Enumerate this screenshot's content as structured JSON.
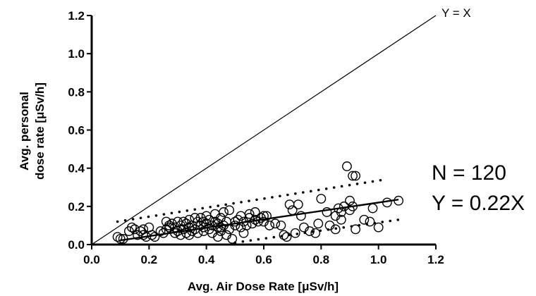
{
  "chart_data": {
    "type": "scatter",
    "title": "",
    "xlabel": "Avg. Air Dose Rate [μSv/h]",
    "ylabel": [
      "Avg. personal",
      "dose rate [μSv/h]"
    ],
    "xlim": [
      0.0,
      1.2
    ],
    "ylim": [
      0.0,
      1.2
    ],
    "x_ticks": [
      "0.0",
      "0.2",
      "0.4",
      "0.6",
      "0.8",
      "1.0",
      "1.2"
    ],
    "y_ticks": [
      "0.0",
      "0.2",
      "0.4",
      "0.6",
      "0.8",
      "1.0",
      "1.2"
    ],
    "grid": false,
    "reference_line": {
      "label": "Y = X",
      "slope": 1
    },
    "fit_line": {
      "slope": 0.22,
      "x_range": [
        0.1,
        1.07
      ]
    },
    "band_lines": [
      {
        "start": [
          0.09,
          0.12
        ],
        "end": [
          1.02,
          0.34
        ]
      },
      {
        "start": [
          0.5,
          0.01
        ],
        "end": [
          1.07,
          0.13
        ]
      }
    ],
    "annotations": [
      "N = 120",
      "Y = 0.22X"
    ],
    "points": [
      [
        0.09,
        0.04
      ],
      [
        0.1,
        0.03
      ],
      [
        0.11,
        0.03
      ],
      [
        0.13,
        0.07
      ],
      [
        0.14,
        0.09
      ],
      [
        0.15,
        0.08
      ],
      [
        0.16,
        0.05
      ],
      [
        0.17,
        0.07
      ],
      [
        0.18,
        0.08
      ],
      [
        0.18,
        0.05
      ],
      [
        0.19,
        0.04
      ],
      [
        0.2,
        0.09
      ],
      [
        0.21,
        0.05
      ],
      [
        0.22,
        0.04
      ],
      [
        0.25,
        0.06
      ],
      [
        0.26,
        0.08
      ],
      [
        0.27,
        0.1
      ],
      [
        0.28,
        0.11
      ],
      [
        0.29,
        0.09
      ],
      [
        0.29,
        0.06
      ],
      [
        0.3,
        0.12
      ],
      [
        0.3,
        0.07
      ],
      [
        0.31,
        0.05
      ],
      [
        0.31,
        0.1
      ],
      [
        0.32,
        0.12
      ],
      [
        0.32,
        0.08
      ],
      [
        0.33,
        0.06
      ],
      [
        0.33,
        0.11
      ],
      [
        0.34,
        0.09
      ],
      [
        0.34,
        0.13
      ],
      [
        0.35,
        0.07
      ],
      [
        0.35,
        0.1
      ],
      [
        0.36,
        0.14
      ],
      [
        0.36,
        0.08
      ],
      [
        0.37,
        0.06
      ],
      [
        0.37,
        0.12
      ],
      [
        0.38,
        0.1
      ],
      [
        0.38,
        0.14
      ],
      [
        0.39,
        0.09
      ],
      [
        0.39,
        0.07
      ],
      [
        0.4,
        0.11
      ],
      [
        0.4,
        0.15
      ],
      [
        0.41,
        0.08
      ],
      [
        0.41,
        0.13
      ],
      [
        0.42,
        0.1
      ],
      [
        0.42,
        0.06
      ],
      [
        0.43,
        0.12
      ],
      [
        0.43,
        0.16
      ],
      [
        0.44,
        0.09
      ],
      [
        0.44,
        0.11
      ],
      [
        0.45,
        0.07
      ],
      [
        0.45,
        0.14
      ],
      [
        0.46,
        0.1
      ],
      [
        0.46,
        0.17
      ],
      [
        0.47,
        0.12
      ],
      [
        0.47,
        0.05
      ],
      [
        0.48,
        0.18
      ],
      [
        0.48,
        0.08
      ],
      [
        0.49,
        0.03
      ],
      [
        0.5,
        0.1
      ],
      [
        0.51,
        0.13
      ],
      [
        0.52,
        0.15
      ],
      [
        0.52,
        0.09
      ],
      [
        0.53,
        0.12
      ],
      [
        0.54,
        0.1
      ],
      [
        0.55,
        0.14
      ],
      [
        0.55,
        0.16
      ],
      [
        0.56,
        0.11
      ],
      [
        0.57,
        0.13
      ],
      [
        0.58,
        0.12
      ],
      [
        0.59,
        0.14
      ],
      [
        0.6,
        0.15
      ],
      [
        0.6,
        0.12
      ],
      [
        0.61,
        0.15
      ],
      [
        0.66,
        0.1
      ],
      [
        0.68,
        0.04
      ],
      [
        0.69,
        0.21
      ],
      [
        0.7,
        0.18
      ],
      [
        0.72,
        0.21
      ],
      [
        0.73,
        0.15
      ],
      [
        0.74,
        0.09
      ],
      [
        0.76,
        0.07
      ],
      [
        0.78,
        0.06
      ],
      [
        0.8,
        0.24
      ],
      [
        0.82,
        0.17
      ],
      [
        0.83,
        0.1
      ],
      [
        0.85,
        0.08
      ],
      [
        0.86,
        0.19
      ],
      [
        0.87,
        0.17
      ],
      [
        0.88,
        0.2
      ],
      [
        0.89,
        0.41
      ],
      [
        0.9,
        0.23
      ],
      [
        0.9,
        0.18
      ],
      [
        0.91,
        0.36
      ],
      [
        0.91,
        0.2
      ],
      [
        0.92,
        0.36
      ],
      [
        0.92,
        0.08
      ],
      [
        0.95,
        0.13
      ],
      [
        0.97,
        0.12
      ],
      [
        1.0,
        0.09
      ],
      [
        1.03,
        0.22
      ],
      [
        1.07,
        0.23
      ],
      [
        0.24,
        0.07
      ],
      [
        0.27,
        0.09
      ],
      [
        0.34,
        0.05
      ],
      [
        0.39,
        0.12
      ],
      [
        0.45,
        0.09
      ],
      [
        0.5,
        0.12
      ],
      [
        0.57,
        0.17
      ],
      [
        0.64,
        0.11
      ],
      [
        0.71,
        0.06
      ],
      [
        0.79,
        0.11
      ],
      [
        0.85,
        0.15
      ],
      [
        0.98,
        0.19
      ],
      [
        0.26,
        0.12
      ],
      [
        0.53,
        0.06
      ],
      [
        0.67,
        0.05
      ],
      [
        0.87,
        0.13
      ],
      [
        0.44,
        0.04
      ],
      [
        0.62,
        0.1
      ]
    ]
  }
}
